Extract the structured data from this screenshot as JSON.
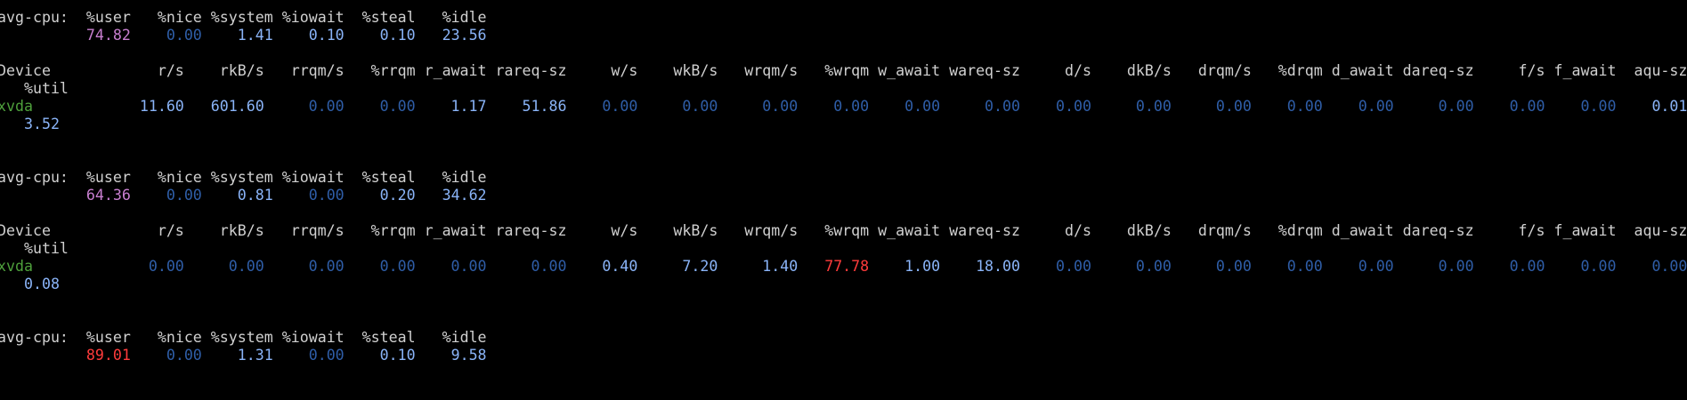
{
  "colors": {
    "background": "#000000",
    "text": "#d0d0d0",
    "zero": "#2f5ea8",
    "value": "#8ab4f8",
    "user_normal": "#c87fd0",
    "high": "#ff3b3b",
    "device": "#4ea03c"
  },
  "cpu_header": [
    "avg-cpu:",
    "%user",
    "%nice",
    "%system",
    "%iowait",
    "%steal",
    "%idle"
  ],
  "device_header": [
    "Device",
    "r/s",
    "rkB/s",
    "rrqm/s",
    "%rrqm",
    "r_await",
    "rareq-sz",
    "w/s",
    "wkB/s",
    "wrqm/s",
    "%wrqm",
    "w_await",
    "wareq-sz",
    "d/s",
    "dkB/s",
    "drqm/s",
    "%drqm",
    "d_await",
    "dareq-sz",
    "f/s",
    "f_await",
    "aqu-sz"
  ],
  "device_header_wrap": "%util",
  "reports": [
    {
      "cpu": [
        {
          "value": "74.82",
          "style": "user_normal"
        },
        {
          "value": "0.00",
          "style": "zero"
        },
        {
          "value": "1.41",
          "style": "value"
        },
        {
          "value": "0.10",
          "style": "value"
        },
        {
          "value": "0.10",
          "style": "value"
        },
        {
          "value": "23.56",
          "style": "value"
        }
      ],
      "device": {
        "name": "xvda",
        "values": [
          {
            "value": "11.60",
            "style": "value"
          },
          {
            "value": "601.60",
            "style": "value"
          },
          {
            "value": "0.00",
            "style": "zero"
          },
          {
            "value": "0.00",
            "style": "zero"
          },
          {
            "value": "1.17",
            "style": "value"
          },
          {
            "value": "51.86",
            "style": "value"
          },
          {
            "value": "0.00",
            "style": "zero"
          },
          {
            "value": "0.00",
            "style": "zero"
          },
          {
            "value": "0.00",
            "style": "zero"
          },
          {
            "value": "0.00",
            "style": "zero"
          },
          {
            "value": "0.00",
            "style": "zero"
          },
          {
            "value": "0.00",
            "style": "zero"
          },
          {
            "value": "0.00",
            "style": "zero"
          },
          {
            "value": "0.00",
            "style": "zero"
          },
          {
            "value": "0.00",
            "style": "zero"
          },
          {
            "value": "0.00",
            "style": "zero"
          },
          {
            "value": "0.00",
            "style": "zero"
          },
          {
            "value": "0.00",
            "style": "zero"
          },
          {
            "value": "0.00",
            "style": "zero"
          },
          {
            "value": "0.00",
            "style": "zero"
          },
          {
            "value": "0.01",
            "style": "value"
          }
        ],
        "util": {
          "value": "3.52",
          "style": "value"
        }
      }
    },
    {
      "cpu": [
        {
          "value": "64.36",
          "style": "user_normal"
        },
        {
          "value": "0.00",
          "style": "zero"
        },
        {
          "value": "0.81",
          "style": "value"
        },
        {
          "value": "0.00",
          "style": "zero"
        },
        {
          "value": "0.20",
          "style": "value"
        },
        {
          "value": "34.62",
          "style": "value"
        }
      ],
      "device": {
        "name": "xvda",
        "values": [
          {
            "value": "0.00",
            "style": "zero"
          },
          {
            "value": "0.00",
            "style": "zero"
          },
          {
            "value": "0.00",
            "style": "zero"
          },
          {
            "value": "0.00",
            "style": "zero"
          },
          {
            "value": "0.00",
            "style": "zero"
          },
          {
            "value": "0.00",
            "style": "zero"
          },
          {
            "value": "0.40",
            "style": "value"
          },
          {
            "value": "7.20",
            "style": "value"
          },
          {
            "value": "1.40",
            "style": "value"
          },
          {
            "value": "77.78",
            "style": "high"
          },
          {
            "value": "1.00",
            "style": "value"
          },
          {
            "value": "18.00",
            "style": "value"
          },
          {
            "value": "0.00",
            "style": "zero"
          },
          {
            "value": "0.00",
            "style": "zero"
          },
          {
            "value": "0.00",
            "style": "zero"
          },
          {
            "value": "0.00",
            "style": "zero"
          },
          {
            "value": "0.00",
            "style": "zero"
          },
          {
            "value": "0.00",
            "style": "zero"
          },
          {
            "value": "0.00",
            "style": "zero"
          },
          {
            "value": "0.00",
            "style": "zero"
          },
          {
            "value": "0.00",
            "style": "zero"
          }
        ],
        "util": {
          "value": "0.08",
          "style": "value"
        }
      }
    },
    {
      "cpu": [
        {
          "value": "89.01",
          "style": "high"
        },
        {
          "value": "0.00",
          "style": "zero"
        },
        {
          "value": "1.31",
          "style": "value"
        },
        {
          "value": "0.00",
          "style": "zero"
        },
        {
          "value": "0.10",
          "style": "value"
        },
        {
          "value": "9.58",
          "style": "value"
        }
      ]
    }
  ]
}
